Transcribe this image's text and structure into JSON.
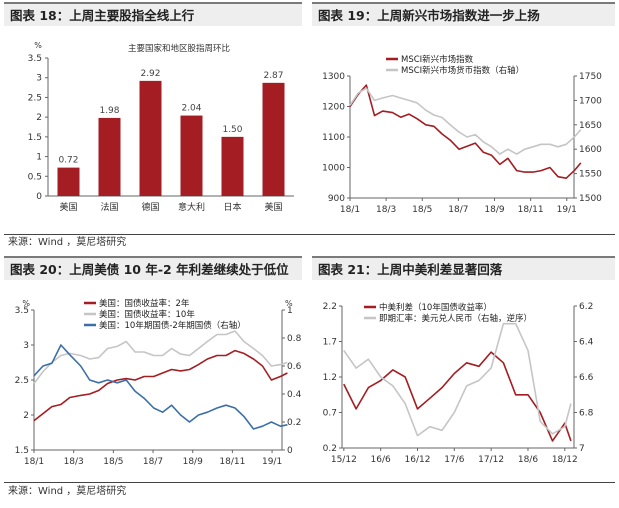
{
  "panels": {
    "p18": {
      "title": "图表 18：上周主要股指全线上行"
    },
    "p19": {
      "title": "图表 19：上周新兴市场指数进一步上扬"
    },
    "p20": {
      "title": "图表 20：上周美债 10 年-2 年利差继续处于低位"
    },
    "p21": {
      "title": "图表 21：上周中美利差显著回落"
    }
  },
  "source_top": "来源：Wind ，莫尼塔研究",
  "source_bottom": "来源：Wind ，莫尼塔研究",
  "colors": {
    "dark_red": "#a31d22",
    "grey": "#c5c5c5",
    "blue": "#3c6fa6",
    "axis": "#666666"
  },
  "chart_data": [
    {
      "id": "p18",
      "type": "bar",
      "title": "主要国家和地区股指周环比",
      "unit": "%",
      "categories": [
        "美国",
        "法国",
        "德国",
        "意大利",
        "日本",
        "美国"
      ],
      "values": [
        0.72,
        1.98,
        2.92,
        2.04,
        1.5,
        2.87
      ],
      "value_labels": [
        "0.72",
        "1.98",
        "2.92",
        "2.04",
        "1.50",
        "2.87"
      ],
      "ylim": [
        0,
        3.5
      ],
      "yticks": [
        "0",
        "0.5",
        "1",
        "1.5",
        "2",
        "2.5",
        "3",
        "3.5"
      ],
      "grid": false
    },
    {
      "id": "p19",
      "type": "line",
      "x_ticks": [
        "18/1",
        "18/3",
        "18/5",
        "18/7",
        "18/9",
        "18/11",
        "19/1"
      ],
      "ylim": [
        900,
        1300
      ],
      "yticks": [
        "900",
        "1000",
        "1100",
        "1200",
        "1300"
      ],
      "y2lim": [
        1500,
        1750
      ],
      "y2ticks": [
        "1500",
        "1550",
        "1600",
        "1650",
        "1700",
        "1750"
      ],
      "legend_position": "top-left",
      "series": [
        {
          "name": "MSCI新兴市场指数",
          "axis": "left",
          "color": "#a31d22",
          "x": [
            "2018-01-01",
            "2018-01-15",
            "2018-01-29",
            "2018-02-12",
            "2018-02-26",
            "2018-03-12",
            "2018-03-26",
            "2018-04-09",
            "2018-04-23",
            "2018-05-07",
            "2018-05-21",
            "2018-06-04",
            "2018-06-18",
            "2018-07-02",
            "2018-07-16",
            "2018-07-30",
            "2018-08-13",
            "2018-08-27",
            "2018-09-10",
            "2018-09-24",
            "2018-10-08",
            "2018-10-22",
            "2018-11-05",
            "2018-11-19",
            "2018-12-03",
            "2018-12-17",
            "2018-12-31",
            "2019-01-14",
            "2019-01-25"
          ],
          "y": [
            1200,
            1240,
            1270,
            1170,
            1185,
            1180,
            1165,
            1175,
            1160,
            1140,
            1135,
            1110,
            1090,
            1060,
            1070,
            1080,
            1050,
            1040,
            1010,
            1030,
            990,
            985,
            985,
            990,
            1000,
            970,
            965,
            990,
            1015
          ]
        },
        {
          "name": "MSCI新兴市场货币指数（右轴）",
          "axis": "right",
          "color": "#c5c5c5",
          "x": [
            "2018-01-01",
            "2018-01-15",
            "2018-01-29",
            "2018-02-12",
            "2018-02-26",
            "2018-03-12",
            "2018-03-26",
            "2018-04-09",
            "2018-04-23",
            "2018-05-07",
            "2018-05-21",
            "2018-06-04",
            "2018-06-18",
            "2018-07-02",
            "2018-07-16",
            "2018-07-30",
            "2018-08-13",
            "2018-08-27",
            "2018-09-10",
            "2018-09-24",
            "2018-10-08",
            "2018-10-22",
            "2018-11-05",
            "2018-11-19",
            "2018-12-03",
            "2018-12-17",
            "2018-12-31",
            "2019-01-14",
            "2019-01-25"
          ],
          "y": [
            1690,
            1715,
            1725,
            1700,
            1705,
            1710,
            1705,
            1700,
            1695,
            1680,
            1670,
            1665,
            1650,
            1635,
            1625,
            1630,
            1615,
            1605,
            1590,
            1600,
            1590,
            1600,
            1605,
            1610,
            1610,
            1605,
            1610,
            1625,
            1640
          ]
        }
      ]
    },
    {
      "id": "p20",
      "type": "line",
      "unit": "%",
      "x_ticks": [
        "18/1",
        "18/3",
        "18/5",
        "18/7",
        "18/9",
        "18/11",
        "19/1"
      ],
      "ylim": [
        1.5,
        3.5
      ],
      "yticks": [
        "1.5",
        "2",
        "2.5",
        "3",
        "3.5"
      ],
      "y2lim": [
        0,
        1
      ],
      "y2ticks": [
        "0",
        "0.2",
        "0.4",
        "0.6",
        "0.8",
        "1"
      ],
      "y2unit": "%",
      "legend_position": "top-left",
      "series": [
        {
          "name": "美国：国债收益率：2年",
          "axis": "left",
          "color": "#a31d22",
          "x": [
            "2018-01-01",
            "2018-01-15",
            "2018-01-29",
            "2018-02-12",
            "2018-02-26",
            "2018-03-12",
            "2018-03-26",
            "2018-04-09",
            "2018-04-23",
            "2018-05-07",
            "2018-05-21",
            "2018-06-04",
            "2018-06-18",
            "2018-07-02",
            "2018-07-16",
            "2018-07-30",
            "2018-08-13",
            "2018-08-27",
            "2018-09-10",
            "2018-09-24",
            "2018-10-08",
            "2018-10-22",
            "2018-11-05",
            "2018-11-19",
            "2018-12-03",
            "2018-12-17",
            "2018-12-31",
            "2019-01-14",
            "2019-01-25"
          ],
          "y": [
            1.92,
            2.02,
            2.12,
            2.15,
            2.25,
            2.28,
            2.3,
            2.35,
            2.45,
            2.5,
            2.52,
            2.5,
            2.55,
            2.55,
            2.6,
            2.65,
            2.63,
            2.65,
            2.72,
            2.8,
            2.85,
            2.85,
            2.92,
            2.88,
            2.8,
            2.7,
            2.5,
            2.55,
            2.6
          ]
        },
        {
          "name": "美国：国债收益率：10年",
          "axis": "left",
          "color": "#c5c5c5",
          "x": [
            "2018-01-01",
            "2018-01-15",
            "2018-01-29",
            "2018-02-12",
            "2018-02-26",
            "2018-03-12",
            "2018-03-26",
            "2018-04-09",
            "2018-04-23",
            "2018-05-07",
            "2018-05-21",
            "2018-06-04",
            "2018-06-18",
            "2018-07-02",
            "2018-07-16",
            "2018-07-30",
            "2018-08-13",
            "2018-08-27",
            "2018-09-10",
            "2018-09-24",
            "2018-10-08",
            "2018-10-22",
            "2018-11-05",
            "2018-11-19",
            "2018-12-03",
            "2018-12-17",
            "2018-12-31",
            "2019-01-14",
            "2019-01-25"
          ],
          "y": [
            2.45,
            2.62,
            2.75,
            2.85,
            2.88,
            2.85,
            2.8,
            2.82,
            2.95,
            2.98,
            3.05,
            2.9,
            2.9,
            2.85,
            2.85,
            2.95,
            2.87,
            2.85,
            2.95,
            3.05,
            3.15,
            3.15,
            3.2,
            3.05,
            2.95,
            2.85,
            2.7,
            2.72,
            2.75
          ]
        },
        {
          "name": "美国：10年期国债-2年期国债（右轴）",
          "axis": "right",
          "color": "#3c6fa6",
          "x": [
            "2018-01-01",
            "2018-01-15",
            "2018-01-29",
            "2018-02-12",
            "2018-02-26",
            "2018-03-12",
            "2018-03-26",
            "2018-04-09",
            "2018-04-23",
            "2018-05-07",
            "2018-05-21",
            "2018-06-04",
            "2018-06-18",
            "2018-07-02",
            "2018-07-16",
            "2018-07-30",
            "2018-08-13",
            "2018-08-27",
            "2018-09-10",
            "2018-09-24",
            "2018-10-08",
            "2018-10-22",
            "2018-11-05",
            "2018-11-19",
            "2018-12-03",
            "2018-12-17",
            "2018-12-31",
            "2019-01-14",
            "2019-01-25"
          ],
          "y": [
            0.53,
            0.6,
            0.62,
            0.75,
            0.68,
            0.6,
            0.5,
            0.48,
            0.5,
            0.48,
            0.5,
            0.42,
            0.37,
            0.3,
            0.27,
            0.32,
            0.25,
            0.2,
            0.25,
            0.27,
            0.3,
            0.32,
            0.3,
            0.24,
            0.15,
            0.17,
            0.2,
            0.17,
            0.18
          ]
        }
      ]
    },
    {
      "id": "p21",
      "type": "line",
      "x_ticks": [
        "15/12",
        "16/6",
        "16/12",
        "17/6",
        "17/12",
        "18/6",
        "18/12"
      ],
      "ylim": [
        0.2,
        2.2
      ],
      "yticks": [
        "0.2",
        "0.7",
        "1.2",
        "1.7",
        "2.2"
      ],
      "y2lim": [
        7.0,
        6.2
      ],
      "y2ticks": [
        "6.2",
        "6.4",
        "6.6",
        "6.8",
        "7"
      ],
      "legend_position": "top-left",
      "series": [
        {
          "name": "中美利差（10年国债收益率）",
          "axis": "left",
          "color": "#a31d22",
          "x": [
            "2015-12",
            "2016-02",
            "2016-04",
            "2016-06",
            "2016-08",
            "2016-10",
            "2016-12",
            "2017-02",
            "2017-04",
            "2017-06",
            "2017-08",
            "2017-10",
            "2017-12",
            "2018-02",
            "2018-04",
            "2018-06",
            "2018-08",
            "2018-10",
            "2018-12",
            "2019-01"
          ],
          "y": [
            1.1,
            0.75,
            1.05,
            1.15,
            1.3,
            1.2,
            0.75,
            0.9,
            1.05,
            1.25,
            1.4,
            1.35,
            1.55,
            1.4,
            0.95,
            0.95,
            0.7,
            0.3,
            0.55,
            0.3
          ]
        },
        {
          "name": "即期汇率：美元兑人民币（右轴，逆序）",
          "axis": "right",
          "color": "#c5c5c5",
          "x": [
            "2015-12",
            "2016-02",
            "2016-04",
            "2016-06",
            "2016-08",
            "2016-10",
            "2016-12",
            "2017-02",
            "2017-04",
            "2017-06",
            "2017-08",
            "2017-10",
            "2017-12",
            "2018-02",
            "2018-04",
            "2018-06",
            "2018-08",
            "2018-10",
            "2018-12",
            "2019-01"
          ],
          "y": [
            6.45,
            6.55,
            6.5,
            6.6,
            6.65,
            6.75,
            6.93,
            6.88,
            6.9,
            6.8,
            6.65,
            6.62,
            6.55,
            6.3,
            6.3,
            6.45,
            6.85,
            6.92,
            6.88,
            6.75
          ]
        }
      ]
    }
  ]
}
